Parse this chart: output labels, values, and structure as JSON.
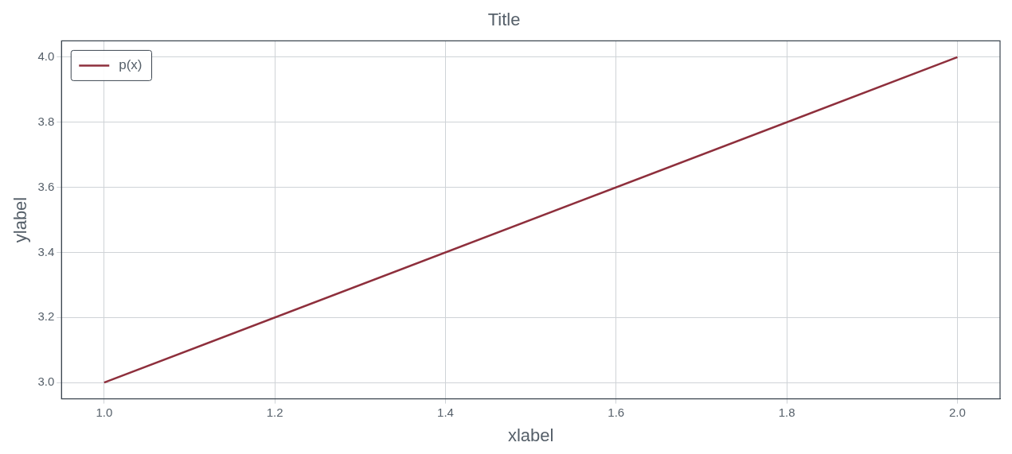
{
  "chart_data": {
    "type": "line",
    "title": "Title",
    "xlabel": "xlabel",
    "ylabel": "ylabel",
    "x": [
      1.0,
      2.0
    ],
    "series": [
      {
        "name": "p(x)",
        "color": "#8e2f3c",
        "values": [
          3.0,
          4.0
        ]
      }
    ],
    "xlim": [
      0.95,
      2.05
    ],
    "xticks": [
      {
        "value": 1.0,
        "label": "1.0"
      },
      1.2,
      1.4,
      1.6,
      1.8,
      {
        "value": 2.0,
        "label": "2.0"
      }
    ],
    "ylim": [
      2.95,
      4.05
    ],
    "yticks": [
      {
        "value": 3.0,
        "label": "3.0"
      },
      3.2,
      3.4,
      3.6,
      3.8,
      {
        "value": 4.0,
        "label": "4.0"
      }
    ],
    "grid": true,
    "legend": "top left",
    "marker": "none",
    "line_style": "solid"
  }
}
